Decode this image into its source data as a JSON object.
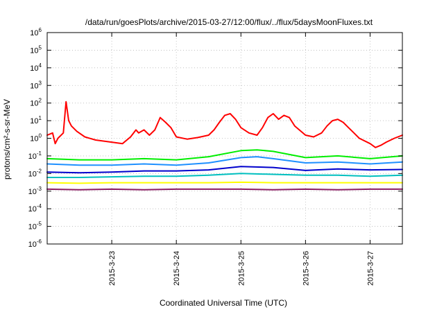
{
  "chart_data": {
    "type": "line",
    "title": "/data/run/goesPlots/archive/2015-03-27/12:00/flux/../flux/5daysMoonFluxes.txt",
    "xlabel": "Coordinated Universal Time (UTC)",
    "ylabel": "protons/cm²-s-sr-MeV",
    "y_scale": "log",
    "ylim": [
      1e-06,
      1000000.0
    ],
    "y_ticks": [
      {
        "value": 1e-06,
        "base": "10",
        "exp": "-6"
      },
      {
        "value": 1e-05,
        "base": "10",
        "exp": "-5"
      },
      {
        "value": 0.0001,
        "base": "10",
        "exp": "-4"
      },
      {
        "value": 0.001,
        "base": "10",
        "exp": "-3"
      },
      {
        "value": 0.01,
        "base": "10",
        "exp": "-2"
      },
      {
        "value": 0.1,
        "base": "10",
        "exp": "-1"
      },
      {
        "value": 1.0,
        "base": "10",
        "exp": "0"
      },
      {
        "value": 10.0,
        "base": "10",
        "exp": "1"
      },
      {
        "value": 100.0,
        "base": "10",
        "exp": "2"
      },
      {
        "value": 1000.0,
        "base": "10",
        "exp": "3"
      },
      {
        "value": 10000.0,
        "base": "10",
        "exp": "4"
      },
      {
        "value": 100000.0,
        "base": "10",
        "exp": "5"
      },
      {
        "value": 1000000.0,
        "base": "10",
        "exp": "6"
      }
    ],
    "x_scale": "time",
    "xlim": [
      "2015-03-22T00:00",
      "2015-03-27T12:00"
    ],
    "x_ticks": [
      {
        "value": "2015-03-23T00:00",
        "label": "2015-3-23"
      },
      {
        "value": "2015-03-24T00:00",
        "label": "2015-3-24"
      },
      {
        "value": "2015-03-25T00:00",
        "label": "2015-3-25"
      },
      {
        "value": "2015-03-26T00:00",
        "label": "2015-3-26"
      },
      {
        "value": "2015-03-27T00:00",
        "label": "2015-3-27"
      }
    ],
    "grid": true,
    "legend": "none",
    "series": [
      {
        "color": "#ff0000",
        "points": [
          [
            "2015-03-22T00:00",
            1.5
          ],
          [
            "2015-03-22T02:00",
            2.0
          ],
          [
            "2015-03-22T03:00",
            0.5
          ],
          [
            "2015-03-22T04:00",
            1.0
          ],
          [
            "2015-03-22T06:00",
            2.0
          ],
          [
            "2015-03-22T07:00",
            120
          ],
          [
            "2015-03-22T08:00",
            10
          ],
          [
            "2015-03-22T09:00",
            5
          ],
          [
            "2015-03-22T11:00",
            2.5
          ],
          [
            "2015-03-22T14:00",
            1.2
          ],
          [
            "2015-03-22T18:00",
            0.8
          ],
          [
            "2015-03-23T00:00",
            0.6
          ],
          [
            "2015-03-23T04:00",
            0.5
          ],
          [
            "2015-03-23T07:00",
            1.2
          ],
          [
            "2015-03-23T09:00",
            3
          ],
          [
            "2015-03-23T10:00",
            2
          ],
          [
            "2015-03-23T12:00",
            3
          ],
          [
            "2015-03-23T14:00",
            1.5
          ],
          [
            "2015-03-23T16:00",
            3
          ],
          [
            "2015-03-23T18:00",
            15
          ],
          [
            "2015-03-23T20:00",
            8
          ],
          [
            "2015-03-23T22:00",
            4
          ],
          [
            "2015-03-24T00:00",
            1.2
          ],
          [
            "2015-03-24T04:00",
            0.9
          ],
          [
            "2015-03-24T08:00",
            1.1
          ],
          [
            "2015-03-24T12:00",
            1.5
          ],
          [
            "2015-03-24T14:00",
            3
          ],
          [
            "2015-03-24T16:00",
            8
          ],
          [
            "2015-03-24T18:00",
            20
          ],
          [
            "2015-03-24T20:00",
            25
          ],
          [
            "2015-03-24T22:00",
            12
          ],
          [
            "2015-03-25T00:00",
            4
          ],
          [
            "2015-03-25T03:00",
            2
          ],
          [
            "2015-03-25T06:00",
            1.5
          ],
          [
            "2015-03-25T08:00",
            4
          ],
          [
            "2015-03-25T10:00",
            15
          ],
          [
            "2015-03-25T12:00",
            25
          ],
          [
            "2015-03-25T14:00",
            12
          ],
          [
            "2015-03-25T16:00",
            20
          ],
          [
            "2015-03-25T18:00",
            15
          ],
          [
            "2015-03-25T20:00",
            5
          ],
          [
            "2015-03-26T00:00",
            1.5
          ],
          [
            "2015-03-26T03:00",
            1.2
          ],
          [
            "2015-03-26T06:00",
            2
          ],
          [
            "2015-03-26T08:00",
            5
          ],
          [
            "2015-03-26T10:00",
            10
          ],
          [
            "2015-03-26T12:00",
            12
          ],
          [
            "2015-03-26T14:00",
            8
          ],
          [
            "2015-03-26T16:00",
            4
          ],
          [
            "2015-03-26T18:00",
            2
          ],
          [
            "2015-03-26T20:00",
            1
          ],
          [
            "2015-03-27T00:00",
            0.5
          ],
          [
            "2015-03-27T02:00",
            0.3
          ],
          [
            "2015-03-27T04:00",
            0.4
          ],
          [
            "2015-03-27T06:00",
            0.6
          ],
          [
            "2015-03-27T09:00",
            1.0
          ],
          [
            "2015-03-27T12:00",
            1.5
          ]
        ]
      },
      {
        "color": "#00ee00",
        "points": [
          [
            "2015-03-22T00:00",
            0.07
          ],
          [
            "2015-03-22T12:00",
            0.06
          ],
          [
            "2015-03-23T00:00",
            0.06
          ],
          [
            "2015-03-23T12:00",
            0.07
          ],
          [
            "2015-03-24T00:00",
            0.06
          ],
          [
            "2015-03-24T12:00",
            0.09
          ],
          [
            "2015-03-25T00:00",
            0.2
          ],
          [
            "2015-03-25T06:00",
            0.22
          ],
          [
            "2015-03-25T12:00",
            0.18
          ],
          [
            "2015-03-26T00:00",
            0.08
          ],
          [
            "2015-03-26T12:00",
            0.1
          ],
          [
            "2015-03-27T00:00",
            0.07
          ],
          [
            "2015-03-27T12:00",
            0.1
          ]
        ]
      },
      {
        "color": "#1e90ff",
        "points": [
          [
            "2015-03-22T00:00",
            0.035
          ],
          [
            "2015-03-22T12:00",
            0.03
          ],
          [
            "2015-03-23T00:00",
            0.03
          ],
          [
            "2015-03-23T12:00",
            0.035
          ],
          [
            "2015-03-24T00:00",
            0.03
          ],
          [
            "2015-03-24T12:00",
            0.04
          ],
          [
            "2015-03-25T00:00",
            0.08
          ],
          [
            "2015-03-25T06:00",
            0.09
          ],
          [
            "2015-03-25T12:00",
            0.07
          ],
          [
            "2015-03-26T00:00",
            0.04
          ],
          [
            "2015-03-26T12:00",
            0.045
          ],
          [
            "2015-03-27T00:00",
            0.035
          ],
          [
            "2015-03-27T12:00",
            0.045
          ]
        ]
      },
      {
        "color": "#0000cc",
        "points": [
          [
            "2015-03-22T00:00",
            0.012
          ],
          [
            "2015-03-22T12:00",
            0.011
          ],
          [
            "2015-03-23T00:00",
            0.012
          ],
          [
            "2015-03-23T12:00",
            0.014
          ],
          [
            "2015-03-24T00:00",
            0.014
          ],
          [
            "2015-03-24T12:00",
            0.016
          ],
          [
            "2015-03-25T00:00",
            0.025
          ],
          [
            "2015-03-25T12:00",
            0.022
          ],
          [
            "2015-03-26T00:00",
            0.015
          ],
          [
            "2015-03-26T12:00",
            0.018
          ],
          [
            "2015-03-27T00:00",
            0.016
          ],
          [
            "2015-03-27T12:00",
            0.017
          ]
        ]
      },
      {
        "color": "#00bfbf",
        "points": [
          [
            "2015-03-22T00:00",
            0.006
          ],
          [
            "2015-03-22T12:00",
            0.006
          ],
          [
            "2015-03-23T00:00",
            0.0065
          ],
          [
            "2015-03-23T12:00",
            0.007
          ],
          [
            "2015-03-24T00:00",
            0.007
          ],
          [
            "2015-03-24T12:00",
            0.008
          ],
          [
            "2015-03-25T00:00",
            0.01
          ],
          [
            "2015-03-25T12:00",
            0.009
          ],
          [
            "2015-03-26T00:00",
            0.008
          ],
          [
            "2015-03-26T12:00",
            0.008
          ],
          [
            "2015-03-27T00:00",
            0.007
          ],
          [
            "2015-03-27T12:00",
            0.008
          ]
        ]
      },
      {
        "color": "#ffff00",
        "points": [
          [
            "2015-03-22T00:00",
            0.003
          ],
          [
            "2015-03-22T12:00",
            0.0028
          ],
          [
            "2015-03-23T00:00",
            0.003
          ],
          [
            "2015-03-23T12:00",
            0.003
          ],
          [
            "2015-03-24T00:00",
            0.003
          ],
          [
            "2015-03-24T12:00",
            0.003
          ],
          [
            "2015-03-25T00:00",
            0.0032
          ],
          [
            "2015-03-25T12:00",
            0.003
          ],
          [
            "2015-03-26T00:00",
            0.003
          ],
          [
            "2015-03-26T12:00",
            0.003
          ],
          [
            "2015-03-27T00:00",
            0.003
          ],
          [
            "2015-03-27T12:00",
            0.003
          ]
        ]
      },
      {
        "color": "#8b1c62",
        "points": [
          [
            "2015-03-22T00:00",
            0.0013
          ],
          [
            "2015-03-22T12:00",
            0.0012
          ],
          [
            "2015-03-23T00:00",
            0.0013
          ],
          [
            "2015-03-23T12:00",
            0.0012
          ],
          [
            "2015-03-24T00:00",
            0.0013
          ],
          [
            "2015-03-24T12:00",
            0.0013
          ],
          [
            "2015-03-25T00:00",
            0.0013
          ],
          [
            "2015-03-25T12:00",
            0.0012
          ],
          [
            "2015-03-26T00:00",
            0.0013
          ],
          [
            "2015-03-26T12:00",
            0.0012
          ],
          [
            "2015-03-27T00:00",
            0.0013
          ],
          [
            "2015-03-27T12:00",
            0.0013
          ]
        ]
      }
    ]
  }
}
